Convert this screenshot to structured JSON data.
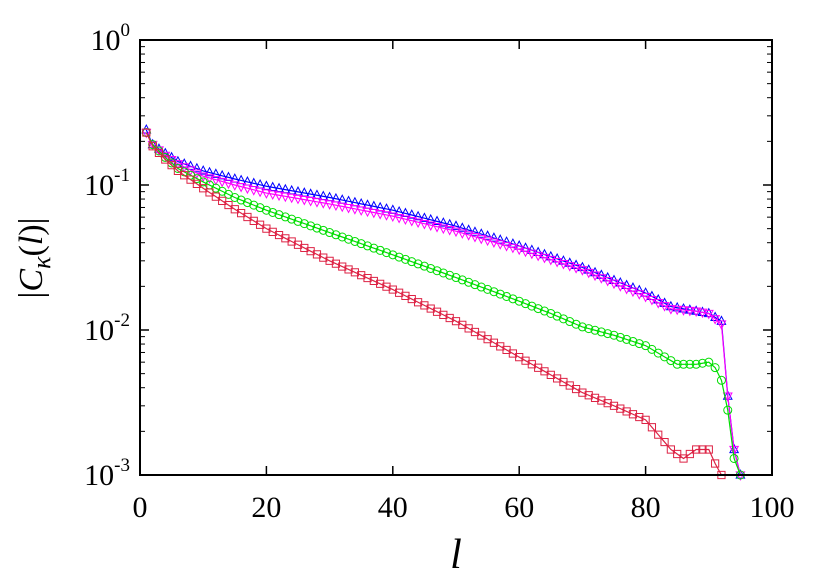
{
  "chart_data": {
    "type": "line",
    "title": "",
    "xlabel": "l",
    "ylabel": {
      "bar_left": "|",
      "c": "C",
      "kappa": "κ",
      "paren": "(",
      "ell": "l",
      "paren_close": ")",
      "bar_right": "|"
    },
    "xlim": [
      0,
      100
    ],
    "ylim": [
      0.001,
      1
    ],
    "y_scale": "log",
    "grid": false,
    "legend": "none",
    "x_ticks": [
      "0",
      "20",
      "40",
      "60",
      "80",
      "100"
    ],
    "y_ticks": [
      {
        "base": "10",
        "exp": "0"
      },
      {
        "base": "10",
        "exp": "-1"
      },
      {
        "base": "10",
        "exp": "-2"
      },
      {
        "base": "10",
        "exp": "-3"
      }
    ],
    "series": [
      {
        "color": "#0000ff",
        "marker": "triangle-up",
        "points": [
          [
            1,
            0.24
          ],
          [
            2,
            0.19
          ],
          [
            4,
            0.165
          ],
          [
            6,
            0.145
          ],
          [
            10,
            0.125
          ],
          [
            15,
            0.11
          ],
          [
            20,
            0.098
          ],
          [
            30,
            0.082
          ],
          [
            40,
            0.067
          ],
          [
            50,
            0.052
          ],
          [
            60,
            0.038
          ],
          [
            70,
            0.027
          ],
          [
            75,
            0.022
          ],
          [
            80,
            0.018
          ],
          [
            84,
            0.0145
          ],
          [
            88,
            0.0135
          ],
          [
            90,
            0.013
          ],
          [
            92,
            0.0115
          ],
          [
            93,
            0.0035
          ],
          [
            94,
            0.0015
          ],
          [
            95,
            0.001
          ]
        ]
      },
      {
        "color": "#ff00ff",
        "marker": "triangle-down",
        "points": [
          [
            1,
            0.23
          ],
          [
            2,
            0.19
          ],
          [
            4,
            0.16
          ],
          [
            6,
            0.14
          ],
          [
            10,
            0.115
          ],
          [
            15,
            0.1
          ],
          [
            20,
            0.088
          ],
          [
            30,
            0.074
          ],
          [
            40,
            0.061
          ],
          [
            50,
            0.048
          ],
          [
            60,
            0.036
          ],
          [
            70,
            0.026
          ],
          [
            75,
            0.021
          ],
          [
            80,
            0.017
          ],
          [
            84,
            0.014
          ],
          [
            88,
            0.0135
          ],
          [
            90,
            0.013
          ],
          [
            92,
            0.011
          ],
          [
            93,
            0.0035
          ],
          [
            94,
            0.0015
          ],
          [
            95,
            0.001
          ]
        ]
      },
      {
        "color": "#00dd00",
        "marker": "circle",
        "points": [
          [
            1,
            0.23
          ],
          [
            2,
            0.19
          ],
          [
            4,
            0.155
          ],
          [
            6,
            0.13
          ],
          [
            10,
            0.105
          ],
          [
            15,
            0.082
          ],
          [
            20,
            0.067
          ],
          [
            30,
            0.047
          ],
          [
            40,
            0.033
          ],
          [
            50,
            0.023
          ],
          [
            60,
            0.0158
          ],
          [
            65,
            0.013
          ],
          [
            70,
            0.0105
          ],
          [
            75,
            0.0092
          ],
          [
            80,
            0.0078
          ],
          [
            85,
            0.0058
          ],
          [
            88,
            0.0058
          ],
          [
            90,
            0.006
          ],
          [
            91,
            0.0055
          ],
          [
            92,
            0.0045
          ],
          [
            93,
            0.0028
          ],
          [
            94,
            0.0013
          ],
          [
            95,
            0.001
          ]
        ]
      },
      {
        "color": "#dd2244",
        "marker": "square",
        "points": [
          [
            1,
            0.23
          ],
          [
            2,
            0.185
          ],
          [
            4,
            0.15
          ],
          [
            6,
            0.125
          ],
          [
            10,
            0.095
          ],
          [
            15,
            0.068
          ],
          [
            20,
            0.05
          ],
          [
            30,
            0.03
          ],
          [
            40,
            0.019
          ],
          [
            50,
            0.0115
          ],
          [
            60,
            0.0065
          ],
          [
            70,
            0.0037
          ],
          [
            75,
            0.003
          ],
          [
            80,
            0.0024
          ],
          [
            84,
            0.0015
          ],
          [
            86,
            0.0013
          ],
          [
            88,
            0.0015
          ],
          [
            90,
            0.0015
          ],
          [
            91,
            0.0012
          ],
          [
            92,
            0.001
          ]
        ]
      }
    ]
  }
}
